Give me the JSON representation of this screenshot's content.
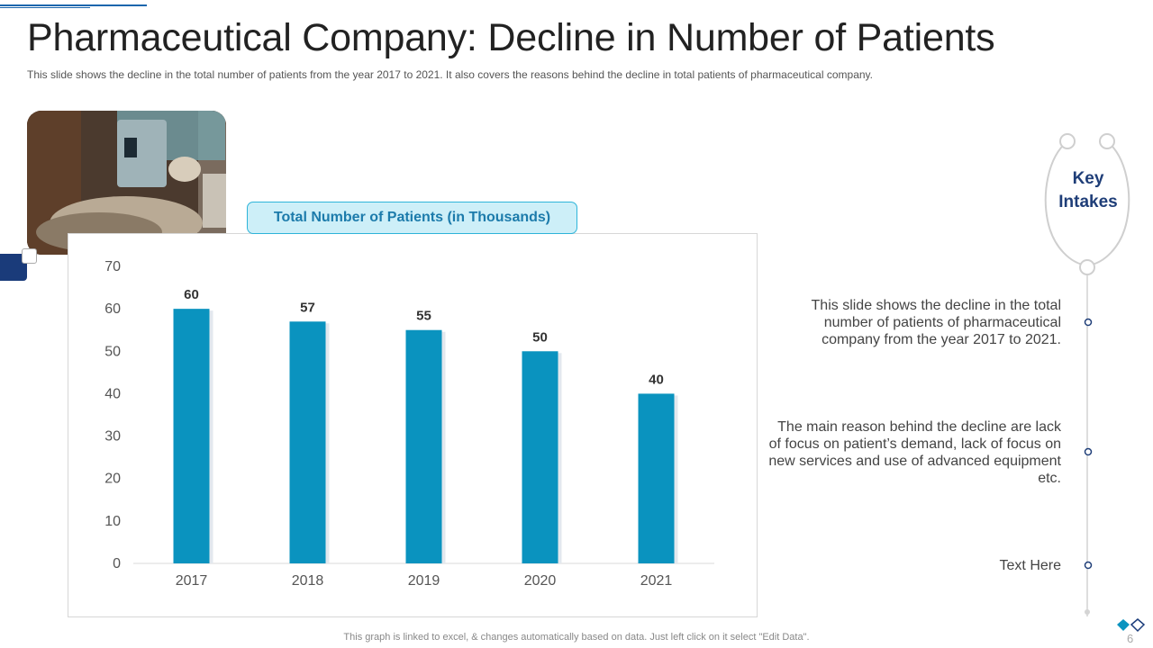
{
  "slide": {
    "title": "Pharmaceutical Company: Decline in Number of Patients",
    "subtitle": "This slide shows the decline in the total number of patients from the year 2017 to 2021. It also covers the reasons behind the decline in total patients of pharmaceutical company.",
    "footnote": "This graph is linked to excel, & changes automatically based on data. Just left click on it select \"Edit Data\".",
    "page_number": "6"
  },
  "photo": {
    "icon": "hospital-patient-photo"
  },
  "key_intakes": {
    "title": "Key Intakes",
    "points": [
      "This slide shows the decline in the total number of patients of pharmaceutical company from the year 2017 to 2021.",
      "The main reason behind the decline are lack of focus on patient’s demand, lack of focus on new services and use of advanced equipment etc.",
      "Text Here"
    ]
  },
  "colors": {
    "bar": "#0a93bf",
    "title_text": "#222222",
    "accent_navy": "#1a3b7a",
    "pill_bg": "#cdeff8",
    "pill_text": "#1c7bab",
    "key_title": "#1f3e78"
  },
  "chart_data": {
    "type": "bar",
    "title": "Total Number of Patients (in Thousands)",
    "categories": [
      "2017",
      "2018",
      "2019",
      "2020",
      "2021"
    ],
    "values": [
      60,
      57,
      55,
      50,
      40
    ],
    "data_labels": [
      "60",
      "57",
      "55",
      "50",
      "40"
    ],
    "y_ticks": [
      0,
      10,
      20,
      30,
      40,
      50,
      60,
      70
    ],
    "ylim": [
      0,
      70
    ],
    "xlabel": "",
    "ylabel": "",
    "grid": false,
    "legend": "none"
  }
}
